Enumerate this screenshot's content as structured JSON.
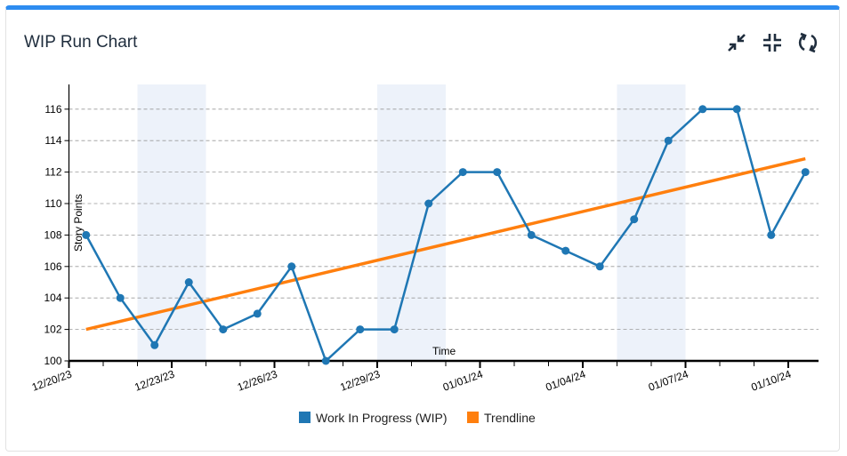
{
  "header": {
    "title": "WIP Run Chart",
    "icons": [
      "collapse-arrows-icon",
      "exit-fullscreen-icon",
      "refresh-icon"
    ]
  },
  "chart_data": {
    "type": "line",
    "title": "",
    "xlabel": "Time",
    "ylabel": "Story Points",
    "x": [
      "12/20/23",
      "12/21/23",
      "12/22/23",
      "12/23/23",
      "12/24/23",
      "12/25/23",
      "12/26/23",
      "12/27/23",
      "12/28/23",
      "12/29/23",
      "12/30/23",
      "12/31/23",
      "01/01/24",
      "01/02/24",
      "01/03/24",
      "01/04/24",
      "01/05/24",
      "01/06/24",
      "01/07/24",
      "01/08/24",
      "01/09/24",
      "01/10/24"
    ],
    "xtick_labels": [
      "12/20/23",
      "12/23/23",
      "12/26/23",
      "12/29/23",
      "01/01/24",
      "01/04/24",
      "01/07/24",
      "01/10/24"
    ],
    "series": [
      {
        "name": "Work In Progress (WIP)",
        "color": "#1f77b4",
        "values": [
          108,
          104,
          101,
          105,
          102,
          103,
          106,
          100,
          102,
          102,
          110,
          112,
          112,
          108,
          107,
          106,
          109,
          114,
          116,
          116,
          108,
          112
        ]
      },
      {
        "name": "Trendline",
        "color": "#ff7f0e",
        "start": 102.0,
        "end": 112.85
      }
    ],
    "shaded_ranges": [
      [
        "12/22/23",
        "12/24/23"
      ],
      [
        "12/29/23",
        "12/31/23"
      ],
      [
        "01/05/24",
        "01/07/24"
      ]
    ],
    "shade_color": "#edf2fa",
    "ylim": [
      100,
      116.6
    ],
    "yticks": [
      100,
      102,
      104,
      106,
      108,
      110,
      112,
      114,
      116
    ],
    "grid": "horizontal dashed",
    "legend": "bottom"
  }
}
